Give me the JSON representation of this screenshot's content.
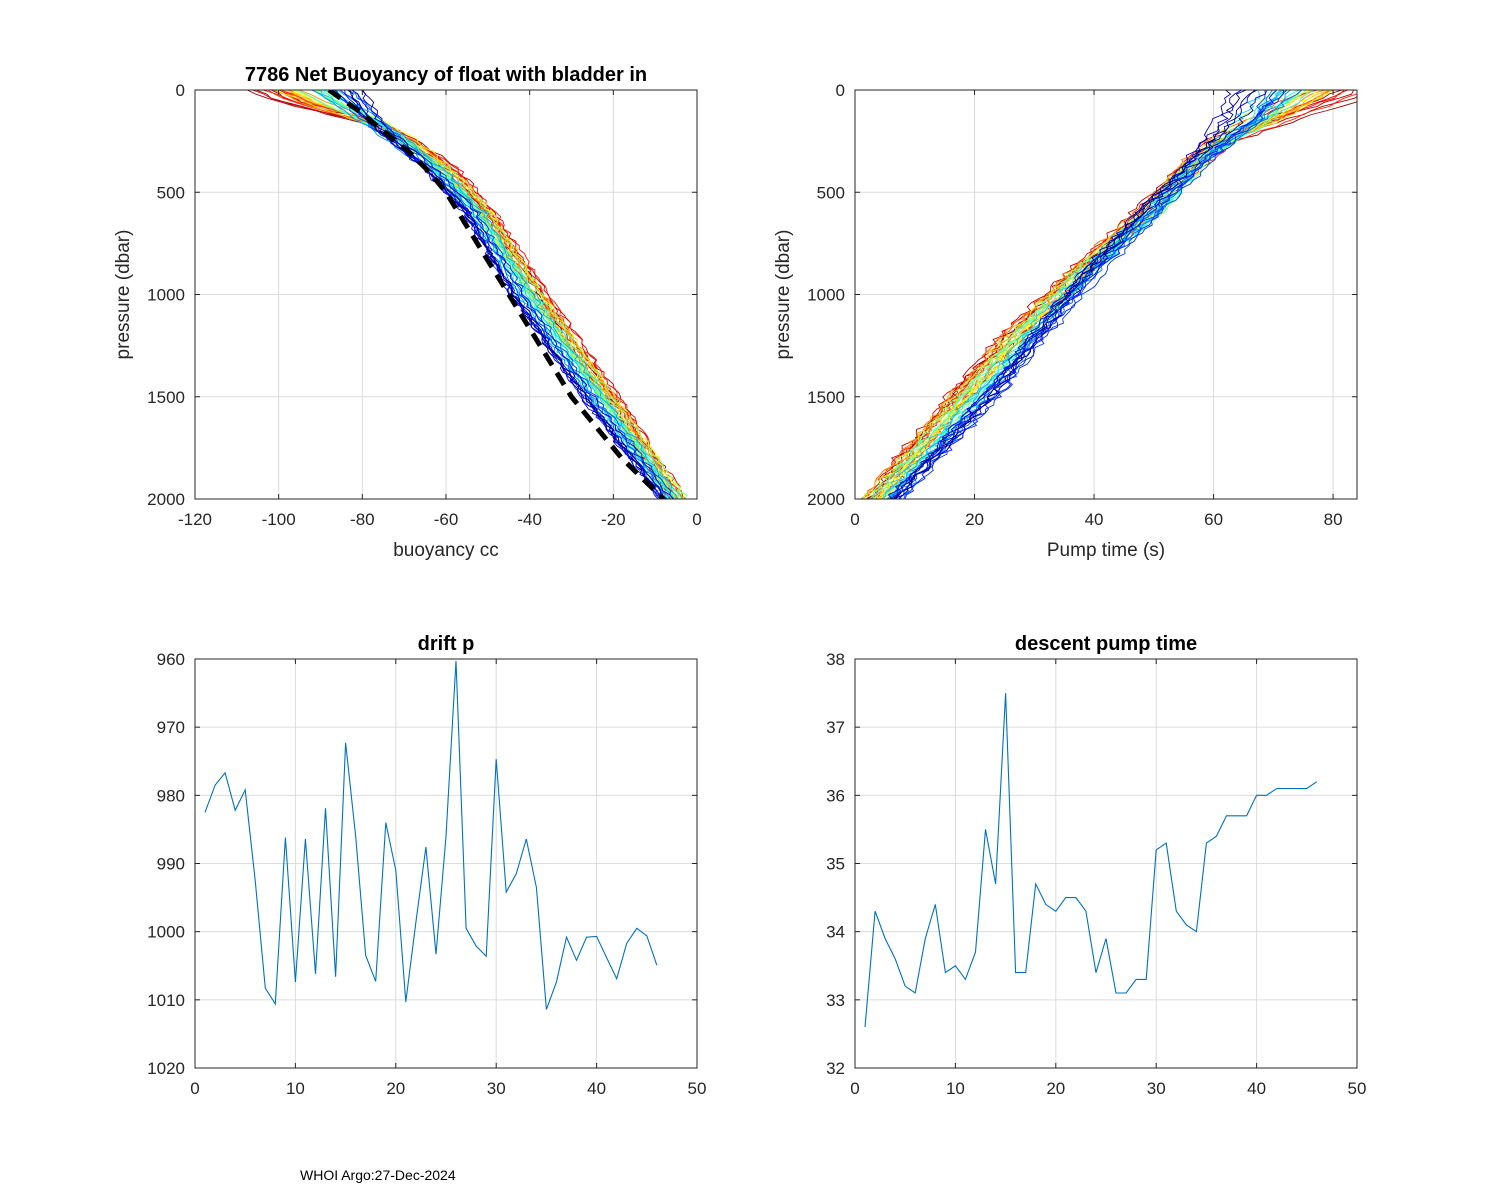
{
  "footer": "WHOI Argo:27-Dec-2024",
  "colors": {
    "grid": "#dcdcdc",
    "axis": "#262626",
    "series": "#0072BD",
    "mean": "#000000"
  },
  "chart_data": [
    {
      "id": "buoyancy",
      "type": "line",
      "title": "7786 Net Buoyancy of float with bladder in",
      "xlabel": "buoyancy cc",
      "ylabel": "pressure (dbar)",
      "xlim": [
        -120,
        0
      ],
      "ylim": [
        0,
        2000
      ],
      "y_reversed": true,
      "xticks": [
        -120,
        -100,
        -80,
        -60,
        -40,
        -20,
        0
      ],
      "yticks": [
        0,
        500,
        1000,
        1500,
        2000
      ],
      "xtick_labels": [
        "-120",
        "-100",
        "-80",
        "-60",
        "-40",
        "-20",
        "0"
      ],
      "ytick_labels": [
        "0",
        "500",
        "1000",
        "1500",
        "2000"
      ],
      "profile_count": 46,
      "profile_colormap": "jet",
      "profiles_note": "46 per-cycle profiles colored red (early) to blue (late); approximate envelope",
      "envelope": {
        "p": [
          0,
          50,
          150,
          250,
          400,
          600,
          1000,
          1500,
          2000
        ],
        "red": [
          -105,
          -100,
          -80,
          -68,
          -58,
          -50,
          -37,
          -20,
          -5
        ],
        "cyan": [
          -93,
          -88,
          -78,
          -70,
          -60,
          -51,
          -39,
          -22,
          -4
        ],
        "blue": [
          -80,
          -79,
          -77,
          -72,
          -64,
          -55,
          -44,
          -27,
          -8
        ]
      },
      "mean_curve": {
        "name": "mean",
        "style": "dashed",
        "p": [
          0,
          100,
          200,
          300,
          400,
          500,
          600,
          800,
          1000,
          1200,
          1500,
          1800,
          2000
        ],
        "x": [
          -88,
          -81,
          -75,
          -69,
          -64,
          -60,
          -57,
          -51,
          -45,
          -39,
          -30,
          -18,
          -8
        ]
      }
    },
    {
      "id": "pumptime",
      "type": "line",
      "title": "",
      "xlabel": "Pump time (s)",
      "ylabel": "pressure (dbar)",
      "xlim": [
        0,
        84
      ],
      "ylim": [
        0,
        2000
      ],
      "y_reversed": true,
      "xticks": [
        0,
        20,
        40,
        60,
        80
      ],
      "yticks": [
        0,
        500,
        1000,
        1500,
        2000
      ],
      "xtick_labels": [
        "0",
        "20",
        "40",
        "60",
        "80"
      ],
      "ytick_labels": [
        "0",
        "500",
        "1000",
        "1500",
        "2000"
      ],
      "profile_count": 46,
      "profile_colormap": "jet",
      "envelope": {
        "p": [
          0,
          50,
          150,
          250,
          400,
          600,
          900,
          1200,
          1500,
          2000
        ],
        "red": [
          84,
          80,
          70,
          61,
          55,
          48,
          37,
          26,
          17,
          3
        ],
        "cyan": [
          74,
          72,
          68,
          62,
          56,
          50,
          38,
          28,
          19,
          4
        ],
        "blue": [
          67,
          66,
          64,
          61,
          56,
          49,
          40,
          32,
          24,
          8
        ]
      }
    },
    {
      "id": "drift",
      "type": "line",
      "title": "drift p",
      "xlabel": "",
      "ylabel": "",
      "xlim": [
        0,
        50
      ],
      "ylim": [
        960,
        1020
      ],
      "y_reversed": true,
      "xticks": [
        0,
        10,
        20,
        30,
        40,
        50
      ],
      "yticks": [
        960,
        970,
        980,
        990,
        1000,
        1010,
        1020
      ],
      "xtick_labels": [
        "0",
        "10",
        "20",
        "30",
        "40",
        "50"
      ],
      "ytick_labels": [
        "960",
        "970",
        "980",
        "990",
        "1000",
        "1010",
        "1020"
      ],
      "series": [
        {
          "name": "drift p",
          "x": [
            1,
            2,
            3,
            4,
            5,
            6,
            7,
            8,
            9,
            10,
            11,
            12,
            13,
            14,
            15,
            16,
            17,
            18,
            19,
            20,
            21,
            22,
            23,
            24,
            25,
            26,
            27,
            28,
            29,
            30,
            31,
            32,
            33,
            34,
            35,
            36,
            37,
            38,
            39,
            40,
            41,
            42,
            43,
            44,
            45,
            46
          ],
          "values": [
            982.5,
            978.5,
            976.7,
            982.2,
            979.2,
            992.5,
            1008.3,
            1010.6,
            986.2,
            1007.4,
            986.4,
            1006.2,
            981.9,
            1006.6,
            972.3,
            985.9,
            1003.5,
            1007.3,
            984.0,
            991.0,
            1010.3,
            998.6,
            987.6,
            1003.3,
            986.0,
            960.3,
            999.5,
            1002.1,
            1003.6,
            974.7,
            994.2,
            991.5,
            986.4,
            993.5,
            1011.4,
            1007.4,
            1000.8,
            1004.2,
            1000.8,
            1000.7,
            1003.8,
            1006.9,
            1001.7,
            999.5,
            1000.6,
            1004.9
          ]
        }
      ]
    },
    {
      "id": "descent",
      "type": "line",
      "title": "descent pump time",
      "xlabel": "",
      "ylabel": "",
      "xlim": [
        0,
        50
      ],
      "ylim": [
        32,
        38
      ],
      "y_reversed": false,
      "xticks": [
        0,
        10,
        20,
        30,
        40,
        50
      ],
      "yticks": [
        32,
        33,
        34,
        35,
        36,
        37,
        38
      ],
      "xtick_labels": [
        "0",
        "10",
        "20",
        "30",
        "40",
        "50"
      ],
      "ytick_labels": [
        "32",
        "33",
        "34",
        "35",
        "36",
        "37",
        "38"
      ],
      "series": [
        {
          "name": "descent pump time",
          "x": [
            1,
            2,
            3,
            4,
            5,
            6,
            7,
            8,
            9,
            10,
            11,
            12,
            13,
            14,
            15,
            16,
            17,
            18,
            19,
            20,
            21,
            22,
            23,
            24,
            25,
            26,
            27,
            28,
            29,
            30,
            31,
            32,
            33,
            34,
            35,
            36,
            37,
            38,
            39,
            40,
            41,
            42,
            43,
            44,
            45,
            46
          ],
          "values": [
            32.6,
            34.3,
            33.9,
            33.6,
            33.2,
            33.1,
            33.9,
            34.4,
            33.4,
            33.5,
            33.3,
            33.7,
            35.5,
            34.7,
            37.5,
            33.4,
            33.4,
            34.7,
            34.4,
            34.3,
            34.5,
            34.5,
            34.3,
            33.4,
            33.9,
            33.1,
            33.1,
            33.3,
            33.3,
            35.2,
            35.3,
            34.3,
            34.1,
            34.0,
            35.3,
            35.4,
            35.7,
            35.7,
            35.7,
            36.0,
            36.0,
            36.1,
            36.1,
            36.1,
            36.1,
            36.2
          ]
        }
      ]
    }
  ]
}
